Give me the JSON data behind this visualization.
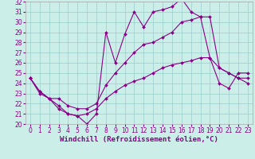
{
  "xlabel": "Windchill (Refroidissement éolien,°C)",
  "xlim": [
    -0.5,
    23.5
  ],
  "ylim": [
    20,
    32
  ],
  "xticks": [
    0,
    1,
    2,
    3,
    4,
    5,
    6,
    7,
    8,
    9,
    10,
    11,
    12,
    13,
    14,
    15,
    16,
    17,
    18,
    19,
    20,
    21,
    22,
    23
  ],
  "yticks": [
    20,
    21,
    22,
    23,
    24,
    25,
    26,
    27,
    28,
    29,
    30,
    31,
    32
  ],
  "background_color": "#cceee8",
  "line_color": "#880088",
  "grid_color": "#99cccc",
  "line1_y": [
    24.5,
    23.2,
    22.5,
    21.8,
    21.0,
    20.8,
    20.0,
    21.0,
    29.0,
    26.0,
    28.8,
    31.0,
    29.5,
    31.0,
    31.2,
    31.5,
    32.3,
    31.0,
    30.5,
    30.5,
    25.5,
    25.0,
    24.5,
    24.5
  ],
  "line2_y": [
    24.5,
    23.2,
    22.5,
    22.5,
    21.8,
    21.5,
    21.5,
    22.0,
    23.8,
    25.0,
    26.0,
    27.0,
    27.8,
    28.0,
    28.5,
    29.0,
    30.0,
    30.2,
    30.5,
    26.5,
    24.0,
    23.5,
    25.0,
    25.0
  ],
  "line3_y": [
    24.5,
    23.0,
    22.5,
    21.5,
    21.0,
    20.8,
    21.0,
    21.5,
    22.5,
    23.2,
    23.8,
    24.2,
    24.5,
    25.0,
    25.5,
    25.8,
    26.0,
    26.2,
    26.5,
    26.5,
    25.5,
    25.0,
    24.5,
    24.0
  ],
  "tick_fontsize": 5.5,
  "xlabel_fontsize": 6.5,
  "markersize": 2.0,
  "linewidth": 0.8
}
